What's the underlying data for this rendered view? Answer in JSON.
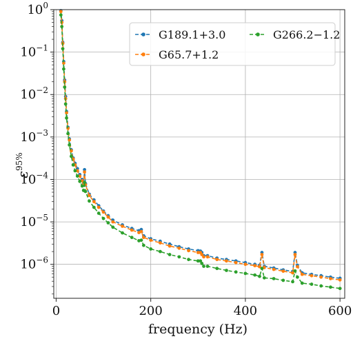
{
  "chart_data": {
    "type": "line",
    "xlabel": "frequency (Hz)",
    "ylabel": "ε",
    "ylabel_sup": "95%",
    "xlim": [
      -5,
      610
    ],
    "ylim_log10": [
      -6.8,
      0
    ],
    "yscale": "log",
    "grid": true,
    "legend_position": "top-right",
    "x_ticks": [
      {
        "value": 0,
        "label": "0"
      },
      {
        "value": 200,
        "label": "200"
      },
      {
        "value": 400,
        "label": "400"
      },
      {
        "value": 600,
        "label": "600"
      }
    ],
    "y_ticks": [
      {
        "exp": 0,
        "base": "10",
        "sup": "0"
      },
      {
        "exp": -1,
        "base": "10",
        "sup": "−1"
      },
      {
        "exp": -2,
        "base": "10",
        "sup": "−2"
      },
      {
        "exp": -3,
        "base": "10",
        "sup": "−3"
      },
      {
        "exp": -4,
        "base": "10",
        "sup": "−4"
      },
      {
        "exp": -5,
        "base": "10",
        "sup": "−5"
      },
      {
        "exp": -6,
        "base": "10",
        "sup": "−6"
      }
    ],
    "series": [
      {
        "name": "G189.1+3.0",
        "color": "#1f77b4",
        "points": [
          [
            10,
            0.95
          ],
          [
            12,
            0.55
          ],
          [
            14,
            0.17
          ],
          [
            16,
            0.06
          ],
          [
            18,
            0.022
          ],
          [
            20,
            0.009
          ],
          [
            22,
            0.004
          ],
          [
            25,
            0.0017
          ],
          [
            28,
            0.0009
          ],
          [
            32,
            0.0005
          ],
          [
            36,
            0.00032
          ],
          [
            40,
            0.00024
          ],
          [
            45,
            0.00018
          ],
          [
            50,
            0.00013
          ],
          [
            55,
            0.0001
          ],
          [
            58,
            8e-05
          ],
          [
            60,
            0.00017
          ],
          [
            62,
            8e-05
          ],
          [
            70,
            4.5e-05
          ],
          [
            80,
            3.3e-05
          ],
          [
            90,
            2.4e-05
          ],
          [
            100,
            1.8e-05
          ],
          [
            110,
            1.4e-05
          ],
          [
            120,
            1.1e-05
          ],
          [
            140,
            8.5e-06
          ],
          [
            160,
            7e-06
          ],
          [
            175,
            6.2e-06
          ],
          [
            180,
            6.6e-06
          ],
          [
            185,
            4.7e-06
          ],
          [
            200,
            4e-06
          ],
          [
            220,
            3.5e-06
          ],
          [
            240,
            3e-06
          ],
          [
            260,
            2.6e-06
          ],
          [
            280,
            2.3e-06
          ],
          [
            300,
            2.1e-06
          ],
          [
            305,
            2.05e-06
          ],
          [
            308,
            1.9e-06
          ],
          [
            312,
            1.6e-06
          ],
          [
            320,
            1.6e-06
          ],
          [
            340,
            1.4e-06
          ],
          [
            360,
            1.3e-06
          ],
          [
            380,
            1.2e-06
          ],
          [
            400,
            1.1e-06
          ],
          [
            420,
            1e-06
          ],
          [
            430,
            9.5e-07
          ],
          [
            435,
            1.9e-06
          ],
          [
            440,
            9e-07
          ],
          [
            460,
            8.2e-07
          ],
          [
            480,
            7.4e-07
          ],
          [
            500,
            6.8e-07
          ],
          [
            505,
            1.9e-06
          ],
          [
            510,
            9.5e-07
          ],
          [
            520,
            6.3e-07
          ],
          [
            540,
            5.8e-07
          ],
          [
            560,
            5.4e-07
          ],
          [
            580,
            5e-07
          ],
          [
            600,
            4.7e-07
          ]
        ]
      },
      {
        "name": "G65.7+1.2",
        "color": "#ff7f0e",
        "points": [
          [
            10,
            0.9
          ],
          [
            12,
            0.5
          ],
          [
            14,
            0.16
          ],
          [
            16,
            0.055
          ],
          [
            18,
            0.02
          ],
          [
            20,
            0.008
          ],
          [
            22,
            0.0037
          ],
          [
            25,
            0.0016
          ],
          [
            28,
            0.00085
          ],
          [
            32,
            0.00047
          ],
          [
            36,
            0.0003
          ],
          [
            40,
            0.00022
          ],
          [
            45,
            0.00016
          ],
          [
            50,
            0.00012
          ],
          [
            55,
            9.3e-05
          ],
          [
            58,
            7.5e-05
          ],
          [
            60,
            0.00015
          ],
          [
            62,
            7.5e-05
          ],
          [
            70,
            4.2e-05
          ],
          [
            80,
            3e-05
          ],
          [
            90,
            2.2e-05
          ],
          [
            100,
            1.7e-05
          ],
          [
            110,
            1.3e-05
          ],
          [
            120,
            1e-05
          ],
          [
            140,
            7.9e-06
          ],
          [
            160,
            6.4e-06
          ],
          [
            175,
            5.6e-06
          ],
          [
            180,
            5.9e-06
          ],
          [
            185,
            4.3e-06
          ],
          [
            200,
            3.7e-06
          ],
          [
            220,
            3.2e-06
          ],
          [
            240,
            2.7e-06
          ],
          [
            260,
            2.4e-06
          ],
          [
            280,
            2.1e-06
          ],
          [
            300,
            1.9e-06
          ],
          [
            305,
            1.9e-06
          ],
          [
            308,
            1.7e-06
          ],
          [
            312,
            1.5e-06
          ],
          [
            320,
            1.5e-06
          ],
          [
            340,
            1.3e-06
          ],
          [
            360,
            1.2e-06
          ],
          [
            380,
            1.1e-06
          ],
          [
            400,
            1e-06
          ],
          [
            420,
            9.3e-07
          ],
          [
            430,
            8.8e-07
          ],
          [
            435,
            1.7e-06
          ],
          [
            440,
            8.4e-07
          ],
          [
            460,
            7.6e-07
          ],
          [
            480,
            6.9e-07
          ],
          [
            500,
            6.3e-07
          ],
          [
            505,
            1.7e-06
          ],
          [
            510,
            8.8e-07
          ],
          [
            520,
            5.8e-07
          ],
          [
            540,
            5.4e-07
          ],
          [
            560,
            5e-07
          ],
          [
            580,
            4.6e-07
          ],
          [
            600,
            4.3e-07
          ]
        ]
      },
      {
        "name": "G266.2−1.2",
        "color": "#2ca02c",
        "points": [
          [
            10,
            0.75
          ],
          [
            12,
            0.4
          ],
          [
            14,
            0.12
          ],
          [
            16,
            0.04
          ],
          [
            18,
            0.015
          ],
          [
            20,
            0.006
          ],
          [
            22,
            0.0028
          ],
          [
            25,
            0.0012
          ],
          [
            28,
            0.00065
          ],
          [
            32,
            0.00035
          ],
          [
            36,
            0.00022
          ],
          [
            40,
            0.00016
          ],
          [
            45,
            0.00012
          ],
          [
            50,
            9e-05
          ],
          [
            55,
            7e-05
          ],
          [
            58,
            5.5e-05
          ],
          [
            60,
            8.5e-05
          ],
          [
            62,
            5.2e-05
          ],
          [
            70,
            3.1e-05
          ],
          [
            80,
            2.2e-05
          ],
          [
            90,
            1.6e-05
          ],
          [
            100,
            1.2e-05
          ],
          [
            110,
            9.5e-06
          ],
          [
            120,
            7.5e-06
          ],
          [
            140,
            5.5e-06
          ],
          [
            160,
            4.3e-06
          ],
          [
            175,
            3.6e-06
          ],
          [
            180,
            3.7e-06
          ],
          [
            185,
            2.8e-06
          ],
          [
            200,
            2.3e-06
          ],
          [
            220,
            2e-06
          ],
          [
            240,
            1.7e-06
          ],
          [
            260,
            1.5e-06
          ],
          [
            280,
            1.3e-06
          ],
          [
            300,
            1.2e-06
          ],
          [
            305,
            1.2e-06
          ],
          [
            308,
            1.05e-06
          ],
          [
            312,
            9e-07
          ],
          [
            320,
            9e-07
          ],
          [
            340,
            8e-07
          ],
          [
            360,
            7.2e-07
          ],
          [
            380,
            6.6e-07
          ],
          [
            400,
            6.1e-07
          ],
          [
            420,
            5.6e-07
          ],
          [
            430,
            5.2e-07
          ],
          [
            435,
            8e-07
          ],
          [
            440,
            4.8e-07
          ],
          [
            460,
            4.6e-07
          ],
          [
            480,
            4.2e-07
          ],
          [
            500,
            3.9e-07
          ],
          [
            505,
            7e-07
          ],
          [
            510,
            5e-07
          ],
          [
            520,
            3.6e-07
          ],
          [
            540,
            3.4e-07
          ],
          [
            560,
            3.1e-07
          ],
          [
            580,
            2.9e-07
          ],
          [
            600,
            2.7e-07
          ]
        ]
      }
    ]
  }
}
